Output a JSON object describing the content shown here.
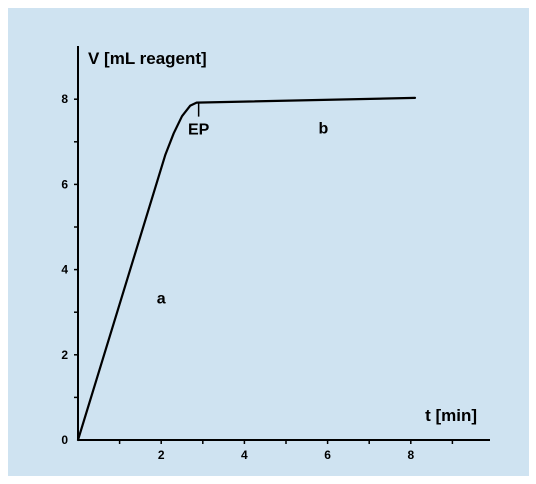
{
  "chart_data": {
    "type": "line",
    "title": "",
    "ylabel": "V [mL reagent]",
    "xlabel": "t [min]",
    "xlim": [
      0,
      10
    ],
    "ylim": [
      0,
      9
    ],
    "x_ticks": [
      2,
      4,
      6,
      8
    ],
    "y_ticks": [
      0,
      2,
      4,
      6,
      8
    ],
    "grid": false,
    "series": [
      {
        "x": [
          0,
          2.1,
          2.3,
          2.5,
          2.7,
          2.85,
          8.1
        ],
        "y": [
          0,
          6.7,
          7.2,
          7.6,
          7.85,
          7.92,
          8.03
        ]
      }
    ],
    "annotations": [
      {
        "text": "EP",
        "x": 2.9,
        "y": 7.92,
        "type": "endpoint-marker"
      },
      {
        "text": "a",
        "x": 2.0,
        "y": 3.2
      },
      {
        "text": "b",
        "x": 5.9,
        "y": 7.2
      }
    ]
  }
}
